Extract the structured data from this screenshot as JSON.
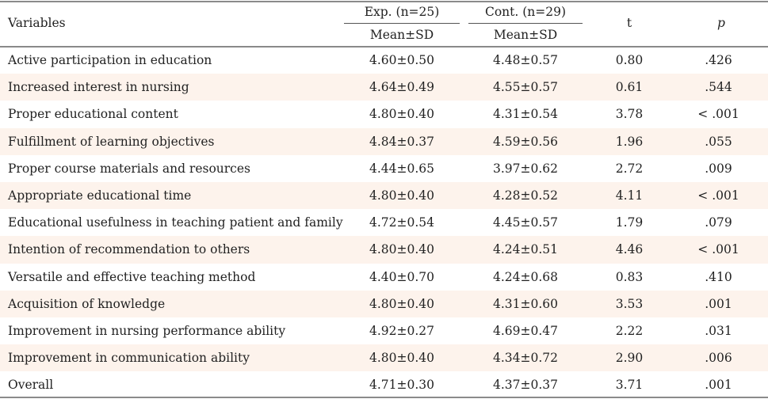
{
  "header": {
    "variables": "Variables",
    "exp_group": "Exp. (n=25)",
    "cont_group": "Cont. (n=29)",
    "exp_stat": "Mean±SD",
    "cont_stat": "Mean±SD",
    "t": "t",
    "p": "p"
  },
  "rows": [
    {
      "variable": "Active participation in education",
      "exp": "4.60±0.50",
      "cont": "4.48±0.57",
      "t": "0.80",
      "p": ".426"
    },
    {
      "variable": "Increased interest in nursing",
      "exp": "4.64±0.49",
      "cont": "4.55±0.57",
      "t": "0.61",
      "p": ".544"
    },
    {
      "variable": "Proper educational content",
      "exp": "4.80±0.40",
      "cont": "4.31±0.54",
      "t": "3.78",
      "p": "< .001"
    },
    {
      "variable": "Fulfillment of learning objectives",
      "exp": "4.84±0.37",
      "cont": "4.59±0.56",
      "t": "1.96",
      "p": ".055"
    },
    {
      "variable": "Proper course materials and resources",
      "exp": "4.44±0.65",
      "cont": "3.97±0.62",
      "t": "2.72",
      "p": ".009"
    },
    {
      "variable": "Appropriate educational time",
      "exp": "4.80±0.40",
      "cont": "4.28±0.52",
      "t": "4.11",
      "p": "< .001"
    },
    {
      "variable": "Educational usefulness in teaching patient and family",
      "exp": "4.72±0.54",
      "cont": "4.45±0.57",
      "t": "1.79",
      "p": ".079"
    },
    {
      "variable": "Intention of recommendation to others",
      "exp": "4.80±0.40",
      "cont": "4.24±0.51",
      "t": "4.46",
      "p": "< .001"
    },
    {
      "variable": "Versatile and effective teaching method",
      "exp": "4.40±0.70",
      "cont": "4.24±0.68",
      "t": "0.83",
      "p": ".410"
    },
    {
      "variable": "Acquisition of knowledge",
      "exp": "4.80±0.40",
      "cont": "4.31±0.60",
      "t": "3.53",
      "p": ".001"
    },
    {
      "variable": "Improvement in nursing performance ability",
      "exp": "4.92±0.27",
      "cont": "4.69±0.47",
      "t": "2.22",
      "p": ".031"
    },
    {
      "variable": "Improvement in communication ability",
      "exp": "4.80±0.40",
      "cont": "4.34±0.72",
      "t": "2.90",
      "p": ".006"
    },
    {
      "variable": "Overall",
      "exp": "4.71±0.30",
      "cont": "4.37±0.37",
      "t": "3.71",
      "p": ".001"
    }
  ],
  "colors": {
    "rule": "#8a8a8a",
    "shaded_row": "#fdf3ec",
    "text": "#222222"
  }
}
